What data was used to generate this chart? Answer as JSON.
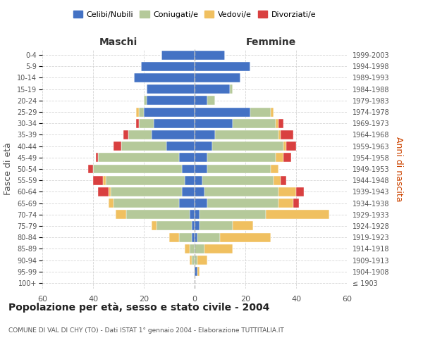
{
  "age_groups": [
    "100+",
    "95-99",
    "90-94",
    "85-89",
    "80-84",
    "75-79",
    "70-74",
    "65-69",
    "60-64",
    "55-59",
    "50-54",
    "45-49",
    "40-44",
    "35-39",
    "30-34",
    "25-29",
    "20-24",
    "15-19",
    "10-14",
    "5-9",
    "0-4"
  ],
  "birth_years": [
    "≤ 1903",
    "1904-1908",
    "1909-1913",
    "1914-1918",
    "1919-1923",
    "1924-1928",
    "1929-1933",
    "1934-1938",
    "1939-1943",
    "1944-1948",
    "1949-1953",
    "1954-1958",
    "1959-1963",
    "1964-1968",
    "1969-1973",
    "1974-1978",
    "1979-1983",
    "1984-1988",
    "1989-1993",
    "1994-1998",
    "1999-2003"
  ],
  "colors": {
    "celibi": "#4472c4",
    "coniugati": "#b5c99a",
    "vedovi": "#f0c060",
    "divorziati": "#d94040"
  },
  "males": {
    "celibi": [
      0,
      0,
      0,
      0,
      1,
      1,
      2,
      6,
      5,
      4,
      5,
      6,
      11,
      17,
      16,
      20,
      19,
      19,
      24,
      21,
      13
    ],
    "coniugati": [
      0,
      0,
      1,
      2,
      5,
      14,
      25,
      26,
      28,
      31,
      35,
      32,
      18,
      9,
      6,
      2,
      1,
      0,
      0,
      0,
      0
    ],
    "vedovi": [
      0,
      0,
      1,
      2,
      4,
      2,
      4,
      2,
      1,
      1,
      0,
      0,
      0,
      0,
      0,
      1,
      0,
      0,
      0,
      0,
      0
    ],
    "divorziati": [
      0,
      0,
      0,
      0,
      0,
      0,
      0,
      0,
      4,
      4,
      2,
      1,
      3,
      2,
      1,
      0,
      0,
      0,
      0,
      0,
      0
    ]
  },
  "females": {
    "nubili": [
      0,
      1,
      0,
      0,
      1,
      2,
      2,
      5,
      4,
      3,
      5,
      5,
      7,
      8,
      15,
      22,
      5,
      14,
      18,
      22,
      12
    ],
    "coniugate": [
      0,
      0,
      1,
      4,
      9,
      13,
      26,
      28,
      29,
      28,
      25,
      27,
      28,
      25,
      17,
      8,
      3,
      1,
      0,
      0,
      0
    ],
    "vedove": [
      0,
      1,
      4,
      11,
      20,
      8,
      25,
      6,
      7,
      3,
      3,
      3,
      1,
      1,
      1,
      1,
      0,
      0,
      0,
      0,
      0
    ],
    "divorziate": [
      0,
      0,
      0,
      0,
      0,
      0,
      0,
      2,
      3,
      2,
      0,
      3,
      4,
      5,
      2,
      0,
      0,
      0,
      0,
      0,
      0
    ]
  },
  "xlim": 60,
  "title": "Popolazione per età, sesso e stato civile - 2004",
  "subtitle": "COMUNE DI VAL DI CHY (TO) - Dati ISTAT 1° gennaio 2004 - Elaborazione TUTTITALIA.IT",
  "ylabel_left": "Fasce di età",
  "ylabel_right": "Anni di nascita",
  "xlabel_left": "Maschi",
  "xlabel_right": "Femmine",
  "legend_labels": [
    "Celibi/Nubili",
    "Coniugati/e",
    "Vedovi/e",
    "Divorziati/e"
  ],
  "bg_color": "#ffffff",
  "grid_color": "#cccccc"
}
